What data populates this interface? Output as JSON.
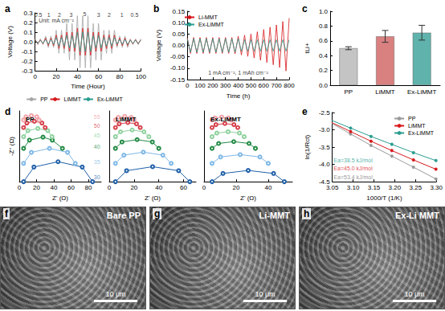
{
  "chart_data": [
    {
      "panel": "a",
      "type": "line",
      "x_label": "Time (Hour)",
      "y_label": "Voltage (V)",
      "xlim": [
        0,
        100
      ],
      "xticks": [
        0,
        20,
        40,
        60,
        80,
        100
      ],
      "ylim": [
        -0.3,
        0.3
      ],
      "yticks": [
        -0.3,
        -0.2,
        -0.1,
        {
          "value": 0,
          "label": "0.0"
        },
        0.1,
        0.2,
        0.3
      ],
      "grid": false,
      "legend": "bottom",
      "marker": "none",
      "x": [
        0,
        2.5,
        5,
        7.5,
        10,
        12.5,
        15,
        17.5,
        20,
        22.5,
        25,
        27.5,
        30,
        32.5,
        35,
        37.5,
        40,
        42.5,
        45,
        47.5,
        50,
        52.5,
        55,
        57.5,
        60,
        62.5,
        65,
        67.5,
        70,
        72.5,
        75,
        77.5,
        80,
        82.5,
        85,
        87.5,
        90,
        92.5,
        95,
        97.5,
        100
      ],
      "series": [
        {
          "name": "PP",
          "color": "#a6a6a6",
          "values": [
            0.03,
            -0.03,
            0.03,
            -0.03,
            0.06,
            -0.06,
            0.06,
            -0.06,
            0.12,
            -0.12,
            0.12,
            -0.12,
            0.19,
            -0.19,
            0.19,
            -0.19,
            0.27,
            -0.27,
            0.27,
            -0.27,
            0.27,
            -0.27,
            0.19,
            -0.19,
            0.19,
            -0.19,
            0.12,
            -0.12,
            0.12,
            -0.12,
            0.12,
            -0.06,
            0.06,
            -0.06,
            0.06,
            -0.06,
            0.03,
            -0.03,
            0.03,
            -0.03,
            0.03
          ]
        },
        {
          "name": "LiMMT",
          "color": "#d7191c",
          "values": [
            0.02,
            -0.02,
            0.02,
            -0.02,
            0.04,
            -0.04,
            0.04,
            -0.04,
            0.07,
            -0.07,
            0.07,
            -0.07,
            0.1,
            -0.1,
            0.1,
            -0.1,
            0.14,
            -0.14,
            0.14,
            -0.14,
            0.14,
            -0.14,
            0.1,
            -0.1,
            0.1,
            -0.1,
            0.07,
            -0.07,
            0.07,
            -0.07,
            0.07,
            -0.04,
            0.04,
            -0.04,
            0.04,
            -0.04,
            0.02,
            -0.02,
            0.02,
            -0.02,
            0.02
          ]
        },
        {
          "name": "Ex-LiMMT",
          "color": "#2a9d8f",
          "values": [
            0.015,
            -0.015,
            0.015,
            -0.015,
            0.025,
            -0.025,
            0.025,
            -0.025,
            0.045,
            -0.045,
            0.045,
            -0.045,
            0.065,
            -0.065,
            0.065,
            -0.065,
            0.1,
            -0.1,
            0.1,
            -0.1,
            0.1,
            -0.1,
            0.065,
            -0.065,
            0.065,
            -0.065,
            0.045,
            -0.045,
            0.045,
            -0.045,
            0.045,
            -0.025,
            0.025,
            -0.025,
            0.025,
            -0.025,
            0.015,
            -0.015,
            0.015,
            -0.015,
            0.015
          ]
        }
      ],
      "annotations": [
        {
          "x": 3,
          "y": 0.28,
          "text": "0.5"
        },
        {
          "x": 13,
          "y": 0.28,
          "text": "1"
        },
        {
          "x": 23,
          "y": 0.28,
          "text": "2"
        },
        {
          "x": 34,
          "y": 0.28,
          "text": "3"
        },
        {
          "x": 47,
          "y": 0.29,
          "text": "5"
        },
        {
          "x": 60,
          "y": 0.28,
          "text": "3"
        },
        {
          "x": 70,
          "y": 0.28,
          "text": "2"
        },
        {
          "x": 82,
          "y": 0.28,
          "text": "1"
        },
        {
          "x": 94,
          "y": 0.28,
          "text": "0.5"
        },
        {
          "x": 20,
          "y": 0.22,
          "text": "Unit: mA cm⁻²"
        }
      ]
    },
    {
      "panel": "b",
      "type": "line",
      "x_label": "Time (h)",
      "y_label": "Voltage (V)",
      "xlim": [
        0,
        800
      ],
      "xticks": [
        0,
        100,
        200,
        300,
        400,
        500,
        600,
        700,
        800
      ],
      "ylim": [
        -0.15,
        0.15
      ],
      "yticks": [
        -0.15,
        {
          "value": -0.1,
          "label": "-0.10"
        },
        -0.05,
        {
          "value": 0,
          "label": "0.00"
        },
        0.05,
        {
          "value": 0.1,
          "label": "0.10"
        },
        0.15
      ],
      "grid": false,
      "legend": "upper left",
      "marker": "none",
      "x": [
        0,
        25,
        50,
        75,
        100,
        125,
        150,
        175,
        200,
        225,
        250,
        275,
        300,
        325,
        350,
        375,
        400,
        425,
        450,
        475,
        500,
        525,
        550,
        575,
        600,
        625,
        650,
        675,
        700,
        725,
        750,
        775,
        800
      ],
      "series": [
        {
          "name": "Li-MMT",
          "color": "#d7191c",
          "values": [
            0.035,
            -0.035,
            0.035,
            -0.035,
            0.035,
            -0.035,
            0.035,
            -0.035,
            0.035,
            -0.035,
            0.035,
            -0.035,
            0.035,
            -0.035,
            0.035,
            -0.037,
            0.04,
            -0.042,
            0.045,
            -0.048,
            0.05,
            -0.055,
            0.06,
            -0.065,
            0.07,
            -0.075,
            0.08,
            -0.085,
            0.09,
            -0.097,
            0.105,
            -0.112,
            0.12
          ]
        },
        {
          "name": "Ex-LiMMT",
          "color": "#2a9d8f",
          "values": [
            0.03,
            -0.03,
            0.03,
            -0.03,
            0.03,
            -0.03,
            0.03,
            -0.03,
            0.03,
            -0.03,
            0.03,
            -0.03,
            0.03,
            -0.03,
            0.03,
            -0.03,
            0.03,
            -0.025,
            0.025,
            -0.025,
            0.025,
            -0.025,
            0.025,
            -0.025,
            0.025,
            -0.025,
            0.025,
            -0.025,
            0.025,
            -0.025,
            0.025,
            -0.025,
            0.025
          ]
        }
      ],
      "annotations": [
        {
          "x": 400,
          "y": -0.118,
          "text": "1 mA cm⁻², 1 mAh cm⁻²"
        }
      ]
    },
    {
      "panel": "c",
      "type": "bar",
      "y_label": "tLi+",
      "categories": [
        "PP",
        "LiMMT",
        "Ex-LiMMT"
      ],
      "values": [
        0.5,
        0.66,
        0.71
      ],
      "errors": [
        0.02,
        0.08,
        0.1
      ],
      "colors": [
        "#c4c4c4",
        "#d98080",
        "#5fb3ac"
      ],
      "ylim": [
        0,
        1
      ],
      "yticks": [
        {
          "value": 0,
          "label": "0.0"
        },
        0.2,
        0.4,
        0.6,
        0.8,
        {
          "value": 1,
          "label": "1.0"
        }
      ],
      "grid": false
    },
    {
      "panel": "d",
      "title": "PP",
      "type": "line",
      "x_label": "Z' (Ω)",
      "y_label": "-Z'' (Ω)",
      "xlim": [
        0,
        95
      ],
      "xticks": [
        0,
        20,
        40,
        60,
        80
      ],
      "ylim": [
        0,
        85
      ],
      "yticks": [],
      "tick_labels": "x",
      "grid": false,
      "marker": "open_circle",
      "series": [
        {
          "color": "#1f5fa8",
          "x": [
            5,
            17,
            45,
            73,
            85
          ],
          "values": [
            0,
            17.6,
            24,
            17.6,
            0
          ]
        },
        {
          "color": "#7fb8e6",
          "x": [
            5,
            14,
            35,
            56,
            65
          ],
          "values": [
            22,
            35.2,
            40,
            35.2,
            22
          ]
        },
        {
          "color": "#238b45",
          "x": [
            5,
            11.8,
            27.5,
            38.3,
            50
          ],
          "values": [
            40,
            49.9,
            53.5,
            49.9,
            40
          ]
        },
        {
          "color": "#8fd19e",
          "x": [
            5,
            10,
            21.5,
            33,
            38
          ],
          "values": [
            54,
            61.3,
            63.9,
            61.3,
            54
          ]
        },
        {
          "color": "#d6404a",
          "x": [
            5,
            8.8,
            17.5,
            26.3,
            30
          ],
          "values": [
            65,
            70.5,
            72.5,
            70.5,
            65
          ]
        },
        {
          "color": "#f2a3a8",
          "x": [
            5,
            7.7,
            14,
            20.3,
            23
          ],
          "values": [
            74,
            78,
            79.4,
            78,
            74
          ]
        }
      ],
      "annotations": [
        {
          "x": 90,
          "y": 5,
          "text": "30",
          "color": "#1f5fa8"
        },
        {
          "x": 90,
          "y": 24,
          "text": "35",
          "color": "#7fb8e6"
        },
        {
          "x": 90,
          "y": 42,
          "text": "40",
          "color": "#238b45"
        },
        {
          "x": 90,
          "y": 56,
          "text": "45",
          "color": "#8fd19e"
        },
        {
          "x": 90,
          "y": 67,
          "text": "50",
          "color": "#d6404a"
        },
        {
          "x": 90,
          "y": 78,
          "text": "55",
          "color": "#f2a3a8"
        }
      ]
    },
    {
      "title": "LiMMT",
      "type": "line",
      "x_label": "Z' (Ω)",
      "xlim": [
        0,
        70
      ],
      "xticks": [
        0,
        20,
        40,
        60
      ],
      "ylim": [
        0,
        85
      ],
      "yticks": [],
      "tick_labels": "x",
      "grid": false,
      "marker": "open_circle",
      "series": [
        {
          "color": "#1f5fa8",
          "x": [
            5,
            14,
            35,
            56,
            65
          ],
          "values": [
            0,
            13.2,
            18,
            13.2,
            0
          ]
        },
        {
          "color": "#7fb8e6",
          "x": [
            5,
            11.8,
            27.5,
            43.3,
            50
          ],
          "values": [
            22,
            31.9,
            35.5,
            31.9,
            22
          ]
        },
        {
          "color": "#238b45",
          "x": [
            5,
            10.3,
            22.5,
            34.8,
            40
          ],
          "values": [
            40,
            47.7,
            50.5,
            47.7,
            40
          ]
        },
        {
          "color": "#8fd19e",
          "x": [
            5,
            9.1,
            18.5,
            28,
            32
          ],
          "values": [
            54,
            59.9,
            62.1,
            59.9,
            54
          ]
        },
        {
          "color": "#d6404a",
          "x": [
            5,
            8,
            15,
            22,
            25
          ],
          "values": [
            65,
            69.4,
            71,
            69.4,
            65
          ]
        },
        {
          "color": "#f2a3a8",
          "x": [
            5,
            7.3,
            12.5,
            17.8,
            20
          ],
          "values": [
            74,
            77.3,
            78.5,
            77.3,
            74
          ]
        }
      ]
    },
    {
      "title": "Ex-LiMMT",
      "type": "line",
      "x_label": "Z' (Ω)",
      "xlim": [
        0,
        55
      ],
      "xticks": [
        0,
        20,
        40
      ],
      "ylim": [
        0,
        85
      ],
      "yticks": [],
      "tick_labels": "x",
      "grid": false,
      "marker": "open_circle",
      "series": [
        {
          "color": "#1f5fa8",
          "x": [
            5,
            11.8,
            27.5,
            43.3,
            50
          ],
          "values": [
            0,
            9.9,
            13.5,
            9.9,
            0
          ]
        },
        {
          "color": "#7fb8e6",
          "x": [
            5,
            10.3,
            22.5,
            34.8,
            40
          ],
          "values": [
            22,
            29.7,
            32.5,
            29.7,
            22
          ]
        },
        {
          "color": "#238b45",
          "x": [
            5,
            9.1,
            18.5,
            28,
            32
          ],
          "values": [
            40,
            45.9,
            48.1,
            45.9,
            40
          ]
        },
        {
          "color": "#8fd19e",
          "x": [
            5,
            8,
            15,
            22,
            25
          ],
          "values": [
            54,
            58.4,
            60,
            58.4,
            54
          ]
        },
        {
          "color": "#d6404a",
          "x": [
            5,
            7.4,
            13,
            18.6,
            21
          ],
          "values": [
            65,
            68.5,
            69.8,
            68.5,
            65
          ]
        },
        {
          "color": "#f2a3a8",
          "x": [
            5,
            6.8,
            11,
            15.2,
            17
          ],
          "values": [
            74,
            76.6,
            77.6,
            76.6,
            74
          ]
        }
      ]
    },
    {
      "panel": "e",
      "type": "line",
      "x_label": "1000/T (1/K)",
      "y_label": "ln(1/Rct)",
      "xlim": [
        3.05,
        3.3
      ],
      "xticks": [
        3.05,
        {
          "value": 3.1,
          "label": "3.10"
        },
        3.15,
        {
          "value": 3.2,
          "label": "3.20"
        },
        3.25,
        {
          "value": 3.3,
          "label": "3.30"
        }
      ],
      "ylim": [
        -4.5,
        -2.5
      ],
      "yticks": [
        -4.5,
        {
          "value": -4,
          "label": "-4.0"
        },
        -3.5,
        {
          "value": -3,
          "label": "-3.0"
        },
        -2.5
      ],
      "grid": false,
      "legend": "upper right",
      "marker": "circle",
      "x": [
        3.047,
        3.094,
        3.143,
        3.193,
        3.245,
        3.299
      ],
      "series": [
        {
          "name": "PP",
          "color": "#9a9a9a",
          "values": [
            -2.8,
            -3.12,
            -3.45,
            -3.76,
            -4.08,
            -4.42
          ]
        },
        {
          "name": "LiMMT",
          "color": "#d7191c",
          "values": [
            -2.78,
            -3.05,
            -3.33,
            -3.6,
            -3.87,
            -4.14
          ]
        },
        {
          "name": "Ex-LiMMT",
          "color": "#2a9d8f",
          "values": [
            -2.72,
            -2.95,
            -3.19,
            -3.42,
            -3.66,
            -3.89
          ]
        }
      ],
      "annotations": [
        {
          "x": 3.1,
          "y": -3.88,
          "text": "Ea=38.5 kJ/mol",
          "color": "#2a9d8f"
        },
        {
          "x": 3.1,
          "y": -4.12,
          "text": "Ea=45.0 kJ/mol",
          "color": "#d7191c"
        },
        {
          "x": 3.1,
          "y": -4.36,
          "text": "Ea=53.4 kJ/mol",
          "color": "#7a7a7a"
        }
      ]
    }
  ],
  "images": [
    {
      "panel": "f",
      "label": "Bare PP",
      "scale_bar": "10 μm"
    },
    {
      "panel": "g",
      "label": "Li-MMT",
      "scale_bar": "10 μm"
    },
    {
      "panel": "h",
      "label": "Ex-Li MMT",
      "scale_bar": "10 μm"
    }
  ]
}
